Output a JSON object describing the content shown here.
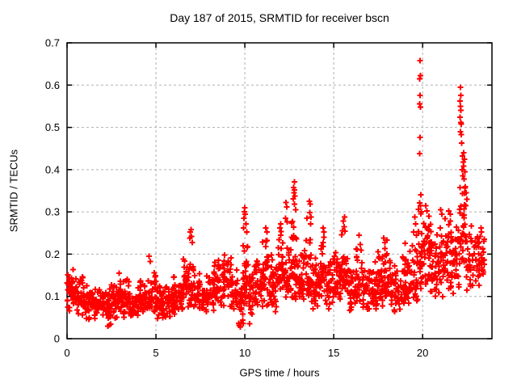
{
  "title": "Day 187 of 2015, SRMTID for receiver bscn",
  "chart_data": {
    "type": "scatter",
    "title": "Day 187 of 2015, SRMTID for receiver bscn",
    "xlabel": "GPS time / hours",
    "ylabel": "SRMTID / TECUs",
    "xlim": [
      0,
      23.9
    ],
    "ylim": [
      0,
      0.7
    ],
    "xticks": [
      0,
      5,
      10,
      15,
      20
    ],
    "xtick_labels": [
      "0",
      "5",
      "10",
      "15",
      "20"
    ],
    "yticks": [
      0,
      0.1,
      0.2,
      0.3,
      0.4,
      0.5,
      0.6,
      0.7
    ],
    "ytick_labels": [
      "0",
      "0.1",
      "0.2",
      "0.3",
      "0.4",
      "0.5",
      "0.6",
      "0.7"
    ],
    "grid": true,
    "legend": false,
    "marker": "plus",
    "marker_color": "#ff0000",
    "grid_color": "#b0b0b0",
    "border_color": "#000000",
    "points": [
      [
        19.85,
        0.658
      ],
      [
        19.87,
        0.623
      ],
      [
        19.84,
        0.615
      ],
      [
        19.86,
        0.576
      ],
      [
        19.84,
        0.556
      ],
      [
        19.87,
        0.548
      ],
      [
        19.85,
        0.476
      ],
      [
        19.83,
        0.438
      ],
      [
        19.9,
        0.34
      ],
      [
        19.88,
        0.315
      ],
      [
        19.92,
        0.3
      ],
      [
        22.12,
        0.595
      ],
      [
        22.15,
        0.576
      ],
      [
        22.1,
        0.562
      ],
      [
        22.13,
        0.55
      ],
      [
        22.16,
        0.54
      ],
      [
        22.11,
        0.524
      ],
      [
        22.14,
        0.512
      ],
      [
        22.18,
        0.508
      ],
      [
        22.12,
        0.49
      ],
      [
        22.17,
        0.483
      ],
      [
        22.2,
        0.463
      ],
      [
        22.3,
        0.44
      ],
      [
        22.25,
        0.432
      ],
      [
        22.35,
        0.425
      ],
      [
        22.28,
        0.418
      ],
      [
        22.32,
        0.408
      ],
      [
        22.22,
        0.4
      ],
      [
        22.38,
        0.395
      ],
      [
        22.27,
        0.385
      ],
      [
        22.33,
        0.378
      ],
      [
        22.4,
        0.36
      ],
      [
        22.45,
        0.345
      ],
      [
        22.5,
        0.33
      ],
      [
        22.42,
        0.315
      ],
      [
        12.78,
        0.371
      ],
      [
        12.74,
        0.358
      ],
      [
        12.8,
        0.352
      ],
      [
        12.76,
        0.345
      ],
      [
        12.82,
        0.338
      ],
      [
        12.72,
        0.331
      ],
      [
        12.79,
        0.318
      ],
      [
        12.85,
        0.305
      ],
      [
        13.62,
        0.325
      ],
      [
        13.68,
        0.318
      ],
      [
        13.65,
        0.298
      ],
      [
        13.72,
        0.288
      ],
      [
        13.7,
        0.272
      ],
      [
        12.32,
        0.322
      ],
      [
        12.36,
        0.312
      ],
      [
        12.3,
        0.285
      ],
      [
        12.38,
        0.276
      ],
      [
        9.95,
        0.285
      ],
      [
        9.98,
        0.3
      ],
      [
        10.0,
        0.31
      ],
      [
        10.03,
        0.295
      ],
      [
        10.06,
        0.272
      ],
      [
        9.92,
        0.262
      ],
      [
        10.1,
        0.252
      ],
      [
        6.9,
        0.238
      ],
      [
        6.94,
        0.252
      ],
      [
        6.97,
        0.258
      ],
      [
        7.0,
        0.242
      ],
      [
        7.04,
        0.228
      ],
      [
        15.55,
        0.278
      ],
      [
        15.6,
        0.288
      ],
      [
        15.58,
        0.265
      ],
      [
        14.4,
        0.262
      ],
      [
        14.45,
        0.252
      ],
      [
        11.18,
        0.262
      ],
      [
        11.24,
        0.252
      ],
      [
        12.02,
        0.272
      ],
      [
        11.98,
        0.262
      ],
      [
        16.42,
        0.245
      ],
      [
        17.82,
        0.238
      ],
      [
        17.88,
        0.228
      ],
      [
        19.55,
        0.288
      ],
      [
        19.6,
        0.272
      ],
      [
        19.5,
        0.252
      ],
      [
        20.18,
        0.315
      ],
      [
        20.25,
        0.302
      ],
      [
        20.35,
        0.29
      ],
      [
        21.02,
        0.305
      ],
      [
        21.08,
        0.295
      ],
      [
        21.48,
        0.302
      ],
      [
        21.55,
        0.295
      ],
      [
        23.28,
        0.262
      ],
      [
        23.32,
        0.252
      ],
      [
        23.25,
        0.242
      ],
      [
        4.62,
        0.195
      ],
      [
        4.68,
        0.183
      ],
      [
        2.92,
        0.155
      ],
      [
        9.68,
        0.032
      ],
      [
        9.75,
        0.028
      ],
      [
        9.8,
        0.038
      ],
      [
        2.3,
        0.03
      ],
      [
        2.45,
        0.034
      ],
      [
        10.28,
        0.035
      ]
    ],
    "density_bands": [
      [
        0.0,
        0.5,
        40,
        0.05,
        0.17,
        0.115
      ],
      [
        0.5,
        1.0,
        40,
        0.05,
        0.155,
        0.1
      ],
      [
        1.0,
        1.5,
        38,
        0.04,
        0.13,
        0.085
      ],
      [
        1.5,
        2.0,
        38,
        0.045,
        0.125,
        0.08
      ],
      [
        2.0,
        2.5,
        40,
        0.03,
        0.13,
        0.075
      ],
      [
        2.5,
        3.0,
        40,
        0.04,
        0.145,
        0.09
      ],
      [
        3.0,
        3.5,
        40,
        0.04,
        0.15,
        0.095
      ],
      [
        3.5,
        4.0,
        38,
        0.04,
        0.12,
        0.075
      ],
      [
        4.0,
        4.5,
        38,
        0.05,
        0.14,
        0.09
      ],
      [
        4.5,
        5.0,
        40,
        0.05,
        0.17,
        0.1
      ],
      [
        5.0,
        5.5,
        40,
        0.045,
        0.13,
        0.085
      ],
      [
        5.5,
        6.0,
        40,
        0.04,
        0.145,
        0.09
      ],
      [
        6.0,
        6.5,
        40,
        0.05,
        0.16,
        0.1
      ],
      [
        6.5,
        7.1,
        46,
        0.06,
        0.23,
        0.13
      ],
      [
        7.1,
        7.5,
        28,
        0.06,
        0.18,
        0.11
      ],
      [
        7.5,
        8.25,
        50,
        0.055,
        0.15,
        0.1
      ],
      [
        8.25,
        8.75,
        38,
        0.06,
        0.2,
        0.12
      ],
      [
        8.75,
        9.25,
        36,
        0.07,
        0.22,
        0.13
      ],
      [
        9.25,
        9.6,
        24,
        0.06,
        0.17,
        0.11
      ],
      [
        9.6,
        9.9,
        22,
        0.03,
        0.15,
        0.085
      ],
      [
        9.9,
        10.2,
        30,
        0.05,
        0.27,
        0.14
      ],
      [
        10.2,
        10.6,
        30,
        0.04,
        0.18,
        0.11
      ],
      [
        10.6,
        11.0,
        34,
        0.06,
        0.22,
        0.13
      ],
      [
        11.0,
        11.4,
        34,
        0.07,
        0.26,
        0.14
      ],
      [
        11.4,
        11.8,
        32,
        0.06,
        0.2,
        0.12
      ],
      [
        11.8,
        12.2,
        34,
        0.07,
        0.27,
        0.15
      ],
      [
        12.2,
        12.6,
        32,
        0.07,
        0.24,
        0.14
      ],
      [
        12.6,
        12.95,
        34,
        0.08,
        0.33,
        0.17
      ],
      [
        12.95,
        13.35,
        32,
        0.07,
        0.24,
        0.14
      ],
      [
        13.35,
        13.75,
        32,
        0.08,
        0.3,
        0.15
      ],
      [
        13.75,
        14.15,
        32,
        0.06,
        0.2,
        0.12
      ],
      [
        14.15,
        14.6,
        34,
        0.08,
        0.26,
        0.15
      ],
      [
        14.6,
        15.0,
        32,
        0.06,
        0.2,
        0.12
      ],
      [
        15.0,
        15.4,
        32,
        0.07,
        0.22,
        0.13
      ],
      [
        15.4,
        15.8,
        34,
        0.08,
        0.27,
        0.15
      ],
      [
        15.8,
        16.2,
        32,
        0.06,
        0.21,
        0.12
      ],
      [
        16.2,
        16.6,
        32,
        0.07,
        0.24,
        0.13
      ],
      [
        16.6,
        17.0,
        32,
        0.05,
        0.18,
        0.11
      ],
      [
        17.0,
        17.4,
        32,
        0.06,
        0.19,
        0.115
      ],
      [
        17.4,
        17.8,
        32,
        0.07,
        0.24,
        0.13
      ],
      [
        17.8,
        18.2,
        32,
        0.07,
        0.24,
        0.13
      ],
      [
        18.2,
        18.6,
        30,
        0.06,
        0.19,
        0.115
      ],
      [
        18.6,
        19.0,
        30,
        0.06,
        0.2,
        0.12
      ],
      [
        19.0,
        19.4,
        30,
        0.07,
        0.23,
        0.13
      ],
      [
        19.4,
        19.75,
        28,
        0.08,
        0.28,
        0.15
      ],
      [
        19.75,
        20.05,
        26,
        0.1,
        0.33,
        0.18
      ],
      [
        20.05,
        20.45,
        32,
        0.1,
        0.3,
        0.18
      ],
      [
        20.45,
        20.85,
        30,
        0.09,
        0.26,
        0.16
      ],
      [
        20.85,
        21.25,
        30,
        0.08,
        0.3,
        0.17
      ],
      [
        21.25,
        21.65,
        30,
        0.09,
        0.3,
        0.18
      ],
      [
        21.65,
        22.05,
        30,
        0.1,
        0.3,
        0.18
      ],
      [
        22.05,
        22.45,
        36,
        0.12,
        0.43,
        0.25
      ],
      [
        22.45,
        22.85,
        28,
        0.1,
        0.3,
        0.19
      ],
      [
        22.85,
        23.2,
        24,
        0.12,
        0.27,
        0.18
      ],
      [
        23.2,
        23.5,
        18,
        0.14,
        0.26,
        0.19
      ]
    ]
  }
}
